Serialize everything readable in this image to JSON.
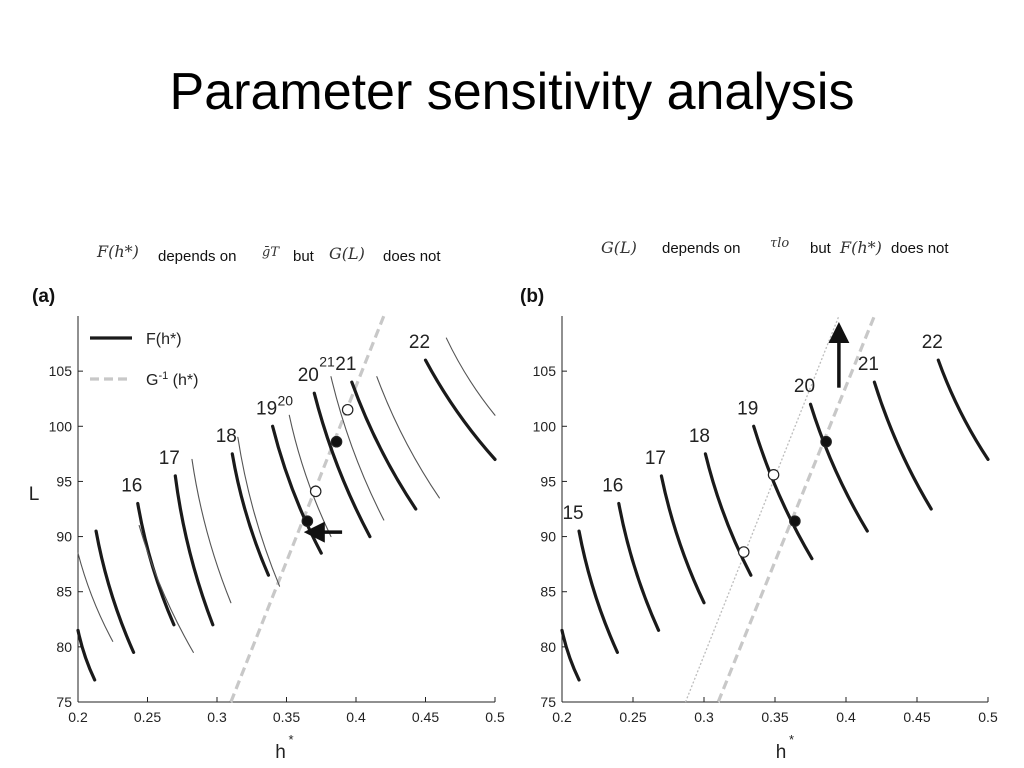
{
  "slide": {
    "title": "Parameter sensitivity analysis"
  },
  "captions": {
    "a": {
      "expr1": "F(h*)",
      "text1": "depends on",
      "expr2": "ḡT",
      "text2": "but",
      "expr3": "G(L)",
      "text3": "does not"
    },
    "b": {
      "expr1": "G(L)",
      "text1": "depends on",
      "expr2": "τlo",
      "text2": "but",
      "expr3": "F(h*)",
      "text3": "does not"
    }
  },
  "colors": {
    "thick_curve": "#1a1a1a",
    "thin_curve": "#555555",
    "G_line": "#c8c8c8",
    "G_line_thin": "#bdbdbd",
    "axis": "#222222"
  },
  "chart_data": [
    {
      "panel_label": "(a)",
      "type": "line",
      "xlabel": "h*",
      "ylabel": "L",
      "xlim": [
        0.2,
        0.5
      ],
      "ylim": [
        75,
        110
      ],
      "xticks": [
        "0.2",
        "0.25",
        "0.3",
        "0.35",
        "0.4",
        "0.45",
        "0.5"
      ],
      "yticks": [
        "75",
        "80",
        "85",
        "90",
        "95",
        "100",
        "105"
      ],
      "legend": {
        "position": "top-left",
        "entries": [
          {
            "label": "F(h*)",
            "style": "solid-thick-black"
          },
          {
            "label": "G-1 (h*)",
            "main": "G",
            "sup": "-1",
            "rest": " (h*)",
            "style": "dashed-gray"
          }
        ]
      },
      "F_curves": [
        {
          "label": "",
          "weight": "thick",
          "points": [
            [
              0.2,
              81.5
            ],
            [
              0.212,
              77.0
            ]
          ]
        },
        {
          "label": "",
          "weight": "thin",
          "points": [
            [
              0.2,
              88.5
            ],
            [
              0.225,
              80.5
            ]
          ]
        },
        {
          "label": "",
          "weight": "thick",
          "points": [
            [
              0.213,
              90.5
            ],
            [
              0.24,
              79.5
            ]
          ]
        },
        {
          "label": "16",
          "weight": "thick",
          "points": [
            [
              0.243,
              93.0
            ],
            [
              0.269,
              82.0
            ]
          ]
        },
        {
          "label": "",
          "weight": "thin",
          "points": [
            [
              0.244,
              91.0
            ],
            [
              0.283,
              79.5
            ]
          ]
        },
        {
          "label": "17",
          "weight": "thick",
          "points": [
            [
              0.27,
              95.5
            ],
            [
              0.297,
              82.0
            ]
          ]
        },
        {
          "label": "",
          "weight": "thin",
          "points": [
            [
              0.282,
              97.0
            ],
            [
              0.31,
              84.0
            ]
          ]
        },
        {
          "label": "18",
          "weight": "thick",
          "points": [
            [
              0.311,
              97.5
            ],
            [
              0.337,
              86.5
            ]
          ]
        },
        {
          "label": "",
          "weight": "thin",
          "points": [
            [
              0.315,
              99.0
            ],
            [
              0.345,
              85.5
            ]
          ]
        },
        {
          "label": "19",
          "weight": "thick",
          "points": [
            [
              0.34,
              100.0
            ],
            [
              0.375,
              88.5
            ]
          ]
        },
        {
          "label": "20",
          "label_style": "small",
          "weight": "thin",
          "points": [
            [
              0.352,
              101.0
            ],
            [
              0.382,
              90.0
            ]
          ]
        },
        {
          "label": "20",
          "weight": "thick",
          "points": [
            [
              0.37,
              103.0
            ],
            [
              0.41,
              90.0
            ]
          ]
        },
        {
          "label": "21",
          "label_style": "small",
          "weight": "thin",
          "points": [
            [
              0.382,
              104.5
            ],
            [
              0.42,
              91.5
            ]
          ]
        },
        {
          "label": "21",
          "weight": "thick",
          "points": [
            [
              0.397,
              104.0
            ],
            [
              0.443,
              92.5
            ]
          ]
        },
        {
          "label": "",
          "weight": "thin",
          "points": [
            [
              0.415,
              104.5
            ],
            [
              0.46,
              93.5
            ]
          ]
        },
        {
          "label": "22",
          "weight": "thick",
          "points": [
            [
              0.45,
              106.0
            ],
            [
              0.5,
              97.0
            ]
          ]
        },
        {
          "label": "",
          "weight": "thin",
          "points": [
            [
              0.465,
              108.0
            ],
            [
              0.5,
              101.0
            ]
          ]
        }
      ],
      "G_lines": [
        {
          "style": "dashed",
          "points": [
            [
              0.31,
              75.0
            ],
            [
              0.42,
              110.0
            ]
          ]
        }
      ],
      "intersections": [
        {
          "x": 0.365,
          "y": 91.4,
          "filled": true
        },
        {
          "x": 0.371,
          "y": 94.1,
          "filled": false
        },
        {
          "x": 0.386,
          "y": 98.6,
          "filled": true
        },
        {
          "x": 0.394,
          "y": 101.5,
          "filled": false
        }
      ],
      "arrow": {
        "direction": "left",
        "from": [
          0.39,
          90.4
        ],
        "to": [
          0.37,
          90.4
        ]
      }
    },
    {
      "panel_label": "(b)",
      "type": "line",
      "xlabel": "h*",
      "ylabel": "",
      "xlim": [
        0.2,
        0.5
      ],
      "ylim": [
        75,
        110
      ],
      "xticks": [
        "0.2",
        "0.25",
        "0.3",
        "0.35",
        "0.4",
        "0.45",
        "0.5"
      ],
      "yticks": [
        "75",
        "80",
        "85",
        "90",
        "95",
        "100",
        "105"
      ],
      "F_curves": [
        {
          "label": "",
          "weight": "thick",
          "points": [
            [
              0.2,
              81.5
            ],
            [
              0.212,
              77.0
            ]
          ]
        },
        {
          "label": "15",
          "weight": "thick",
          "points": [
            [
              0.212,
              90.5
            ],
            [
              0.239,
              79.5
            ]
          ]
        },
        {
          "label": "16",
          "weight": "thick",
          "points": [
            [
              0.24,
              93.0
            ],
            [
              0.268,
              81.5
            ]
          ]
        },
        {
          "label": "17",
          "weight": "thick",
          "points": [
            [
              0.27,
              95.5
            ],
            [
              0.3,
              84.0
            ]
          ]
        },
        {
          "label": "18",
          "weight": "thick",
          "points": [
            [
              0.301,
              97.5
            ],
            [
              0.333,
              86.5
            ]
          ]
        },
        {
          "label": "19",
          "weight": "thick",
          "points": [
            [
              0.335,
              100.0
            ],
            [
              0.376,
              88.0
            ]
          ]
        },
        {
          "label": "20",
          "weight": "thick",
          "points": [
            [
              0.375,
              102.0
            ],
            [
              0.415,
              90.5
            ]
          ]
        },
        {
          "label": "21",
          "weight": "thick",
          "points": [
            [
              0.42,
              104.0
            ],
            [
              0.46,
              92.5
            ]
          ]
        },
        {
          "label": "22",
          "weight": "thick",
          "points": [
            [
              0.465,
              106.0
            ],
            [
              0.5,
              97.0
            ]
          ]
        }
      ],
      "G_lines": [
        {
          "style": "dashed",
          "points": [
            [
              0.31,
              75.0
            ],
            [
              0.42,
              110.0
            ]
          ]
        },
        {
          "style": "dotted-thin",
          "points": [
            [
              0.287,
              75.0
            ],
            [
              0.395,
              110.0
            ]
          ]
        }
      ],
      "intersections": [
        {
          "x": 0.328,
          "y": 88.6,
          "filled": false
        },
        {
          "x": 0.349,
          "y": 95.6,
          "filled": false
        },
        {
          "x": 0.364,
          "y": 91.4,
          "filled": true
        },
        {
          "x": 0.386,
          "y": 98.6,
          "filled": true
        }
      ],
      "arrow": {
        "direction": "up",
        "from": [
          0.395,
          103.5
        ],
        "to": [
          0.395,
          108.5
        ]
      }
    }
  ]
}
